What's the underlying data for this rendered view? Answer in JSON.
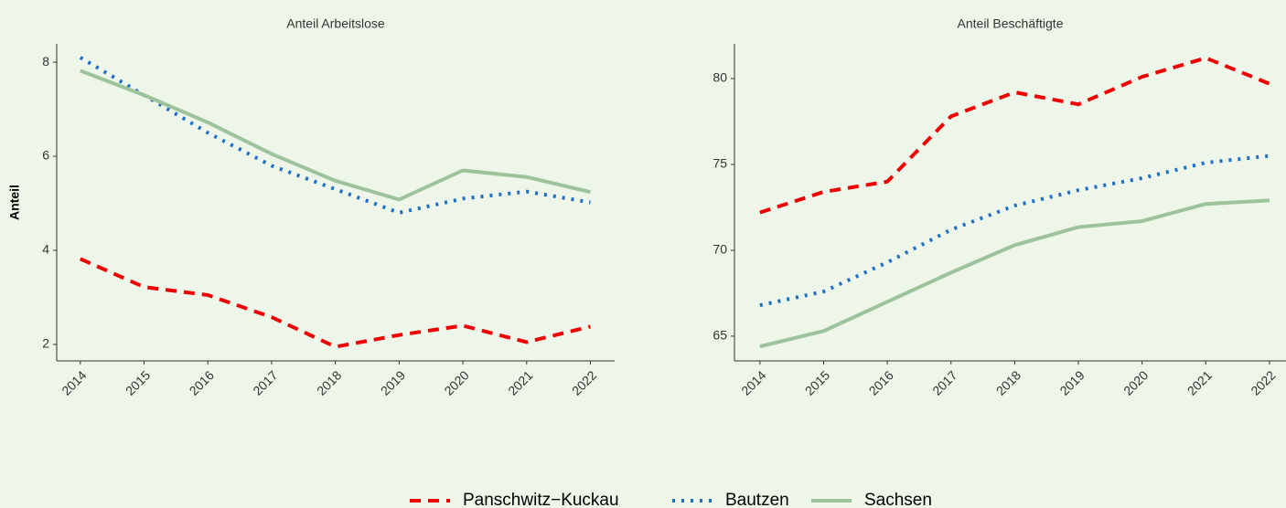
{
  "chart_data": [
    {
      "type": "line",
      "title": "Anteil Arbeitslose",
      "y_label": "Anteil",
      "x": [
        2014,
        2015,
        2016,
        2017,
        2018,
        2019,
        2020,
        2021,
        2022
      ],
      "series": [
        {
          "name": "Panschwitz−Kuckau",
          "color": "#ee0000",
          "values": [
            3.82,
            3.22,
            3.05,
            2.58,
            1.95,
            2.2,
            2.4,
            2.05,
            2.38
          ]
        },
        {
          "name": "Bautzen",
          "color": "#1f6fc5",
          "values": [
            8.1,
            7.3,
            6.5,
            5.8,
            5.3,
            4.8,
            5.1,
            5.25,
            5.02
          ]
        },
        {
          "name": "Sachsen",
          "color": "#9cc39a",
          "values": [
            7.82,
            7.3,
            6.72,
            6.05,
            5.48,
            5.08,
            5.7,
            5.56,
            5.24
          ]
        }
      ],
      "xlim": [
        2013.63,
        2022.38
      ],
      "ylim": [
        1.65,
        8.39
      ],
      "yticks": [
        2,
        4,
        6,
        8
      ]
    },
    {
      "type": "line",
      "title": "Anteil Beschäftigte",
      "x": [
        2014,
        2015,
        2016,
        2017,
        2018,
        2019,
        2020,
        2021,
        2022
      ],
      "series": [
        {
          "name": "Panschwitz−Kuckau",
          "color": "#ee0000",
          "values": [
            72.2,
            73.4,
            74.0,
            77.8,
            79.2,
            78.5,
            80.1,
            81.2,
            79.7
          ]
        },
        {
          "name": "Bautzen",
          "color": "#1f6fc5",
          "values": [
            66.8,
            67.6,
            69.3,
            71.2,
            72.6,
            73.5,
            74.2,
            75.1,
            75.5
          ]
        },
        {
          "name": "Sachsen",
          "color": "#9cc39a",
          "values": [
            64.4,
            65.3,
            67.0,
            68.7,
            70.3,
            71.35,
            71.7,
            72.7,
            72.9
          ]
        }
      ],
      "xlim": [
        2013.6,
        2022.26
      ],
      "ylim": [
        63.56,
        82.02
      ],
      "yticks": [
        65,
        70,
        75,
        80
      ]
    }
  ]
}
